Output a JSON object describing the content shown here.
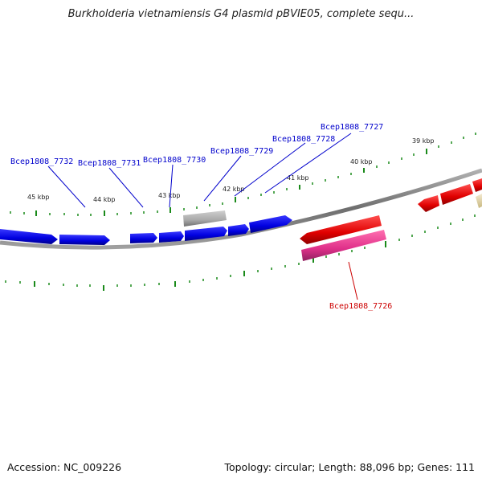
{
  "title": "Burkholderia vietnamiensis G4 plasmid pBVIE05, complete sequ...",
  "footer": {
    "accession": "Accession: NC_009226",
    "summary": "Topology: circular; Length: 88,096 bp; Genes: 111"
  },
  "colors": {
    "forward_gene": "#0000ee",
    "reverse_gene": "#ee0000",
    "pink_gene": "#e0308a",
    "gray_gene": "#a8a8a8",
    "tan_gene": "#e8d8a0",
    "backbone": "#888888",
    "tick": "#1a8a1a",
    "forward_label": "#0000cc",
    "reverse_label": "#cc0000"
  },
  "kbp_labels": [
    "45 kbp",
    "44 kbp",
    "43 kbp",
    "42 kbp",
    "41 kbp",
    "40 kbp",
    "39 kbp"
  ],
  "gene_labels": {
    "g7732": "Bcep1808_7732",
    "g7731": "Bcep1808_7731",
    "g7730": "Bcep1808_7730",
    "g7729": "Bcep1808_7729",
    "g7728": "Bcep1808_7728",
    "g7727": "Bcep1808_7727",
    "g7726": "Bcep1808_7726"
  }
}
